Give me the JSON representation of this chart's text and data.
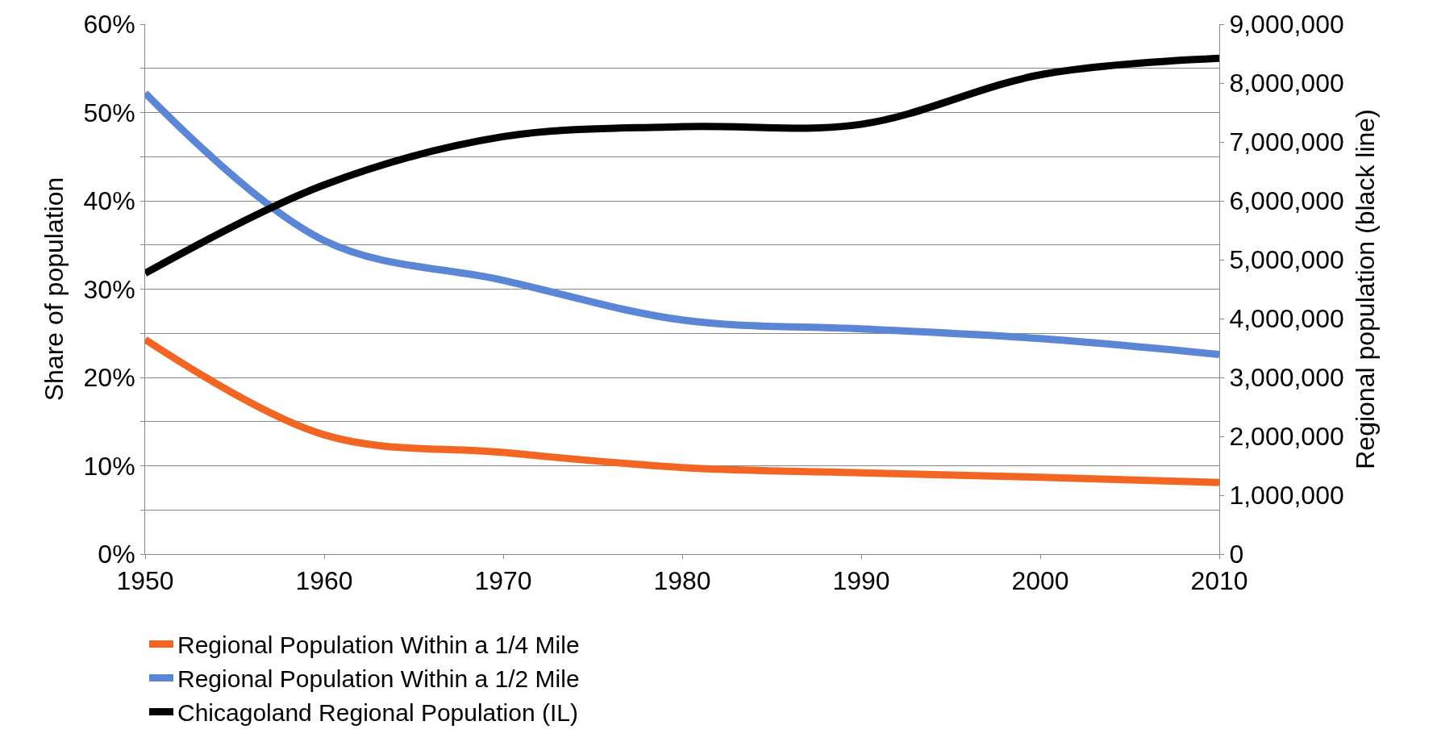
{
  "chart_data": {
    "type": "line",
    "ylabel": "Share of population",
    "y2label": "Regional population (black line)",
    "x": [
      1950,
      1960,
      1970,
      1980,
      1990,
      2000,
      2010
    ],
    "series": [
      {
        "name": "Regional Population Within a 1/4 Mile",
        "color": "#f26522",
        "values": [
          24.3,
          13.5,
          11.5,
          9.8,
          9.2,
          8.7,
          8.1
        ]
      },
      {
        "name": "Regional Population Within a 1/2 Mile",
        "color": "#5b86d6",
        "values": [
          52.2,
          35.5,
          31,
          26.5,
          25.5,
          24.4,
          22.6
        ]
      },
      {
        "name": "Chicagoland Regional Population (IL)",
        "color": "#000000",
        "axis": "y2",
        "values": [
          4770000,
          6270000,
          7090000,
          7260000,
          7300000,
          8140000,
          8420000
        ]
      }
    ],
    "xlim": [
      1950,
      2010
    ],
    "xticks": [
      1950,
      1960,
      1970,
      1980,
      1990,
      2000,
      2010
    ],
    "ylim": [
      0,
      60
    ],
    "yticks": [
      {
        "value": 0,
        "label": "0%"
      },
      {
        "value": 5,
        "label": null
      },
      {
        "value": 10,
        "label": "10%"
      },
      {
        "value": 15,
        "label": null
      },
      {
        "value": 20,
        "label": "20%"
      },
      {
        "value": 25,
        "label": null
      },
      {
        "value": 30,
        "label": "30%"
      },
      {
        "value": 35,
        "label": null
      },
      {
        "value": 40,
        "label": "40%"
      },
      {
        "value": 45,
        "label": null
      },
      {
        "value": 50,
        "label": "50%"
      },
      {
        "value": 55,
        "label": null
      },
      {
        "value": 60,
        "label": "60%"
      }
    ],
    "y2lim": [
      0,
      9000000
    ],
    "y2ticks": [
      0,
      {
        "value": 1000000,
        "label": "1,000,000"
      },
      {
        "value": 2000000,
        "label": "2,000,000"
      },
      {
        "value": 3000000,
        "label": "3,000,000"
      },
      {
        "value": 4000000,
        "label": "4,000,000"
      },
      {
        "value": 5000000,
        "label": "5,000,000"
      },
      {
        "value": 6000000,
        "label": "6,000,000"
      },
      {
        "value": 7000000,
        "label": "7,000,000"
      },
      {
        "value": 8000000,
        "label": "8,000,000"
      },
      {
        "value": 9000000,
        "label": "9,000,000"
      }
    ],
    "grid": "y",
    "legend": "bottom",
    "marker": "none",
    "line_style": "solid"
  }
}
